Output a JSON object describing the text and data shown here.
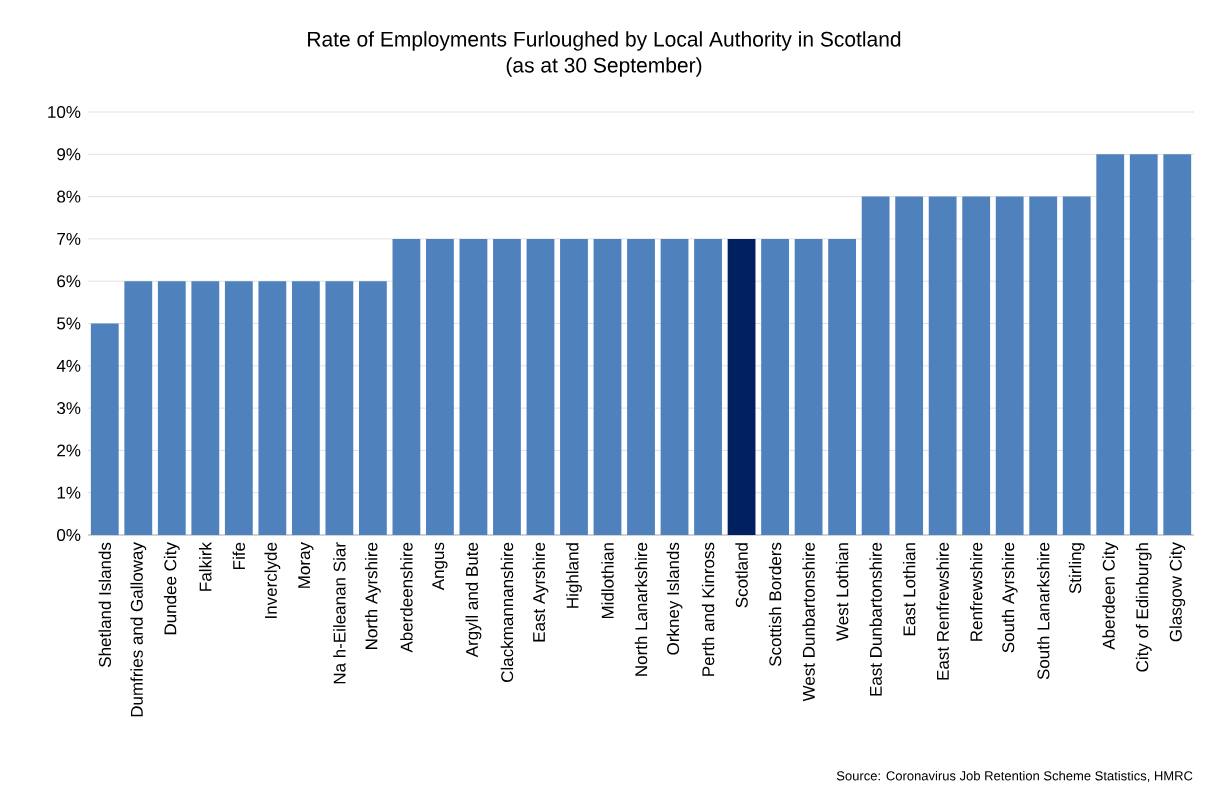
{
  "chart_data": {
    "type": "bar",
    "title": "Rate of Employments Furloughed by Local Authority in Scotland",
    "subtitle": "(as at 30 September)",
    "categories": [
      "Shetland Islands",
      "Dumfries and Galloway",
      "Dundee City",
      "Falkirk",
      "Fife",
      "Inverclyde",
      "Moray",
      "Na h-Eileanan Siar",
      "North Ayrshire",
      "Aberdeenshire",
      "Angus",
      "Argyll and Bute",
      "Clackmannanshire",
      "East Ayrshire",
      "Highland",
      "Midlothian",
      "North Lanarkshire",
      "Orkney Islands",
      "Perth and Kinross",
      "Scotland",
      "Scottish Borders",
      "West Dunbartonshire",
      "West Lothian",
      "East Dunbartonshire",
      "East Lothian",
      "East Renfrewshire",
      "Renfrewshire",
      "South Ayrshire",
      "South Lanarkshire",
      "Stirling",
      "Aberdeen City",
      "City of Edinburgh",
      "Glasgow City"
    ],
    "values": [
      5,
      6,
      6,
      6,
      6,
      6,
      6,
      6,
      6,
      7,
      7,
      7,
      7,
      7,
      7,
      7,
      7,
      7,
      7,
      7,
      7,
      7,
      7,
      8,
      8,
      8,
      8,
      8,
      8,
      8,
      9,
      9,
      9
    ],
    "colors": [
      "#4f81bd",
      "#4f81bd",
      "#4f81bd",
      "#4f81bd",
      "#4f81bd",
      "#4f81bd",
      "#4f81bd",
      "#4f81bd",
      "#4f81bd",
      "#4f81bd",
      "#4f81bd",
      "#4f81bd",
      "#4f81bd",
      "#4f81bd",
      "#4f81bd",
      "#4f81bd",
      "#4f81bd",
      "#4f81bd",
      "#4f81bd",
      "#002060",
      "#4f81bd",
      "#4f81bd",
      "#4f81bd",
      "#4f81bd",
      "#4f81bd",
      "#4f81bd",
      "#4f81bd",
      "#4f81bd",
      "#4f81bd",
      "#4f81bd",
      "#4f81bd",
      "#4f81bd",
      "#4f81bd"
    ],
    "ylim": [
      0,
      10
    ],
    "yticks": [
      {
        "value": 0,
        "label": "0%"
      },
      {
        "value": 1,
        "label": "1%"
      },
      {
        "value": 2,
        "label": "2%"
      },
      {
        "value": 3,
        "label": "3%"
      },
      {
        "value": 4,
        "label": "4%"
      },
      {
        "value": 5,
        "label": "5%"
      },
      {
        "value": 6,
        "label": "6%"
      },
      {
        "value": 7,
        "label": "7%"
      },
      {
        "value": 8,
        "label": "8%"
      },
      {
        "value": 9,
        "label": "9%"
      },
      {
        "value": 10,
        "label": "10%"
      }
    ],
    "grid": "y",
    "annotations": [
      "Source: Coronavirus Job Retention Scheme Statistics, HMRC"
    ]
  }
}
